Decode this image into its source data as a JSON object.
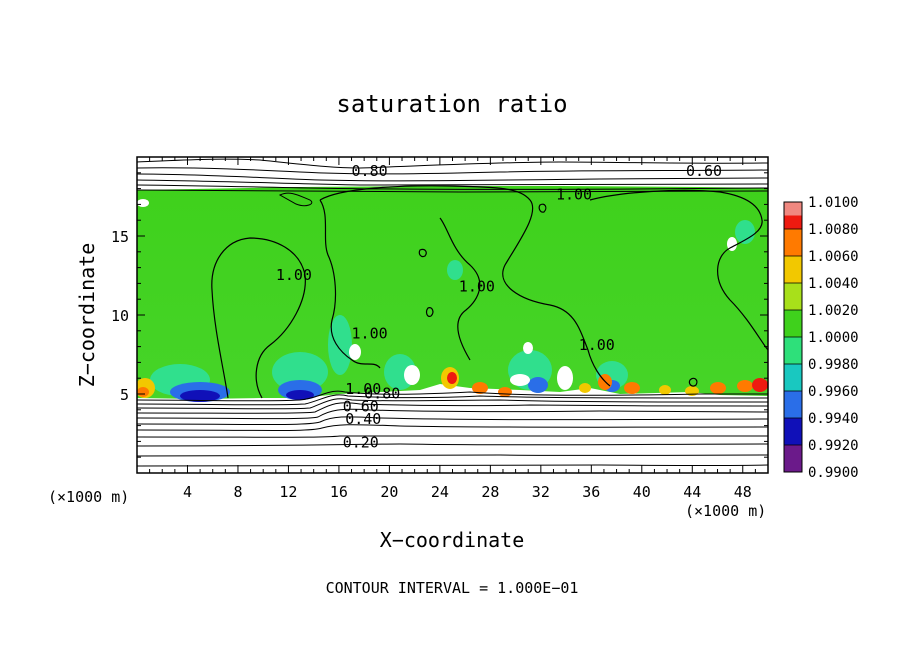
{
  "chart_data": {
    "type": "heatmap",
    "title": "saturation ratio",
    "xlabel": "X−coordinate",
    "ylabel": "Z−coordinate",
    "x_unit": "(×1000 m)",
    "y_unit": "(×1000 m)",
    "xlim": [
      0,
      50
    ],
    "ylim": [
      0,
      20
    ],
    "x_ticks": [
      4,
      8,
      12,
      16,
      20,
      24,
      28,
      32,
      36,
      40,
      44,
      48
    ],
    "y_ticks": [
      5,
      10,
      15
    ],
    "footer": "CONTOUR INTERVAL = 1.000E−01",
    "colorbar": {
      "levels": [
        "0.9900",
        "0.9920",
        "0.9940",
        "0.9960",
        "0.9980",
        "1.0000",
        "1.0020",
        "1.0040",
        "1.0060",
        "1.0080",
        "1.0100"
      ],
      "colors": [
        "#6b1a8a",
        "#1010b8",
        "#2a6ee8",
        "#19c8c0",
        "#2ee07a",
        "#3fd11c",
        "#a8e01a",
        "#f2c800",
        "#ff7a00",
        "#ee1a10",
        "#f08880"
      ]
    },
    "contour_labels": [
      {
        "text": "0.80",
        "x": 17.0,
        "z": 18.8
      },
      {
        "text": "0.60",
        "x": 43.5,
        "z": 18.8
      },
      {
        "text": "1.00",
        "x": 33.2,
        "z": 17.3
      },
      {
        "text": "1.00",
        "x": 11.0,
        "z": 12.2
      },
      {
        "text": "1.00",
        "x": 25.5,
        "z": 11.5
      },
      {
        "text": "1.00",
        "x": 35.0,
        "z": 7.8
      },
      {
        "text": "1.00",
        "x": 17.0,
        "z": 8.5
      },
      {
        "text": "1.00",
        "x": 16.5,
        "z": 5.0
      },
      {
        "text": "0.80",
        "x": 18.0,
        "z": 4.7
      },
      {
        "text": "0.60",
        "x": 16.3,
        "z": 3.9
      },
      {
        "text": "0.40",
        "x": 16.5,
        "z": 3.1
      },
      {
        "text": "0.20",
        "x": 16.3,
        "z": 1.6
      }
    ]
  }
}
